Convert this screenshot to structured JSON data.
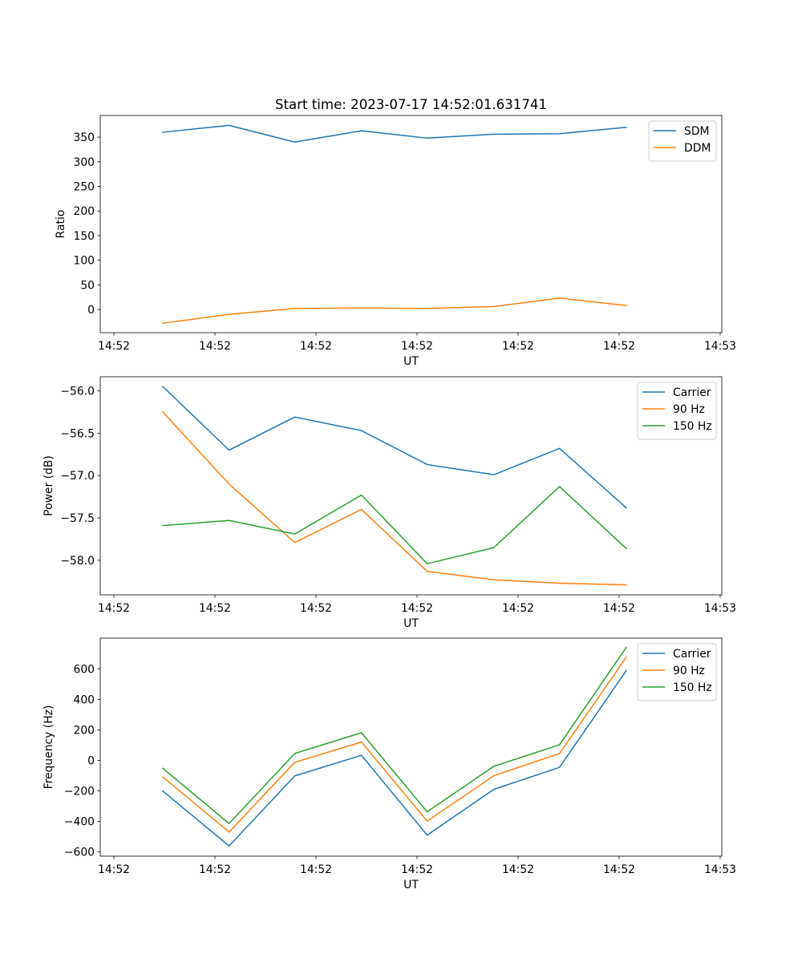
{
  "figure": {
    "title": "Start time: 2023-07-17 14:52:01.631741"
  },
  "colors": {
    "blue": "#1f77b4",
    "orange": "#ff7f0e",
    "green": "#2ca02c"
  },
  "chart_data": [
    {
      "type": "line",
      "title": "Start time: 2023-07-17 14:52:01.631741",
      "xlabel": "UT",
      "ylabel": "Ratio",
      "x_units": "seconds after 14:52:00",
      "x": [
        4.84,
        11.4,
        17.9,
        24.5,
        31.0,
        37.6,
        44.1,
        50.7
      ],
      "xlim": [
        -1.35,
        60.16
      ],
      "xticks": [
        0,
        10,
        20,
        30,
        40,
        50,
        60
      ],
      "xtick_labels": [
        "14:52",
        "14:52",
        "14:52",
        "14:52",
        "14:52",
        "14:52",
        "14:53"
      ],
      "ylim": [
        -47.2,
        394.1
      ],
      "yticks": [
        0,
        50,
        100,
        150,
        200,
        250,
        300,
        350
      ],
      "ytick_labels": [
        "0",
        "50",
        "100",
        "150",
        "200",
        "250",
        "300",
        "350"
      ],
      "grid": false,
      "legend": "top-right",
      "series": [
        {
          "name": "SDM",
          "color": "#1f77b4",
          "values": [
            360,
            374,
            340,
            363,
            348,
            356,
            357,
            370
          ]
        },
        {
          "name": "DDM",
          "color": "#ff7f0e",
          "values": [
            -28,
            -10,
            2,
            3,
            2,
            6,
            23,
            8
          ]
        }
      ]
    },
    {
      "type": "line",
      "title": "",
      "xlabel": "UT",
      "ylabel": "Power (dB)",
      "x_units": "seconds after 14:52:00",
      "x": [
        4.84,
        11.4,
        17.9,
        24.5,
        31.0,
        37.6,
        44.1,
        50.7
      ],
      "xlim": [
        -1.35,
        60.16
      ],
      "xticks": [
        0,
        10,
        20,
        30,
        40,
        50,
        60
      ],
      "xtick_labels": [
        "14:52",
        "14:52",
        "14:52",
        "14:52",
        "14:52",
        "14:52",
        "14:53"
      ],
      "ylim": [
        -58.407,
        -55.835
      ],
      "yticks": [
        -58.0,
        -57.5,
        -57.0,
        -56.5,
        -56.0
      ],
      "ytick_labels": [
        "−58.0",
        "−57.5",
        "−57.0",
        "−56.5",
        "−56.0"
      ],
      "grid": false,
      "legend": "top-right",
      "series": [
        {
          "name": "Carrier",
          "color": "#1f77b4",
          "values": [
            -55.95,
            -56.7,
            -56.31,
            -56.47,
            -56.87,
            -56.99,
            -56.68,
            -57.38
          ]
        },
        {
          "name": "90 Hz",
          "color": "#ff7f0e",
          "values": [
            -56.25,
            -57.1,
            -57.79,
            -57.4,
            -58.13,
            -58.23,
            -58.27,
            -58.29
          ]
        },
        {
          "name": "150 Hz",
          "color": "#2ca02c",
          "values": [
            -57.59,
            -57.53,
            -57.69,
            -57.23,
            -58.04,
            -57.85,
            -57.13,
            -57.86
          ]
        }
      ]
    },
    {
      "type": "line",
      "title": "",
      "xlabel": "UT",
      "ylabel": "Frequency (Hz)",
      "x_units": "seconds after 14:52:00",
      "x": [
        4.84,
        11.4,
        17.9,
        24.5,
        31.0,
        37.6,
        44.1,
        50.7
      ],
      "xlim": [
        -1.35,
        60.16
      ],
      "xticks": [
        0,
        10,
        20,
        30,
        40,
        50,
        60
      ],
      "xtick_labels": [
        "14:52",
        "14:52",
        "14:52",
        "14:52",
        "14:52",
        "14:52",
        "14:53"
      ],
      "ylim": [
        -628,
        801
      ],
      "yticks": [
        -600,
        -400,
        -200,
        0,
        200,
        400,
        600
      ],
      "ytick_labels": [
        "−600",
        "−400",
        "−200",
        "0",
        "200",
        "400",
        "600"
      ],
      "grid": false,
      "legend": "top-right",
      "series": [
        {
          "name": "Carrier",
          "color": "#1f77b4",
          "values": [
            -201,
            -561,
            -102,
            33,
            -490,
            -190,
            -46,
            587
          ]
        },
        {
          "name": "90 Hz",
          "color": "#ff7f0e",
          "values": [
            -109,
            -470,
            -13,
            120,
            -398,
            -101,
            45,
            675
          ]
        },
        {
          "name": "150 Hz",
          "color": "#2ca02c",
          "values": [
            -52,
            -414,
            45,
            181,
            -337,
            -39,
            102,
            740
          ]
        }
      ]
    }
  ]
}
